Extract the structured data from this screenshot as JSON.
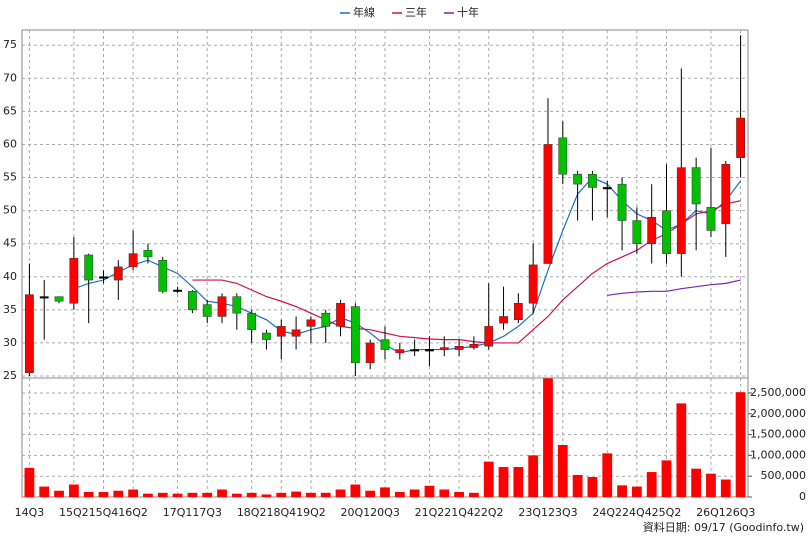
{
  "chart_data": {
    "type": "candlestick",
    "legend": "top",
    "source": "資料日期: 09/17 (Goodinfo.tw)",
    "categories": [
      "14Q3",
      null,
      null,
      "15Q2",
      null,
      "15Q4",
      null,
      "16Q2",
      null,
      null,
      "17Q1",
      null,
      "17Q3",
      null,
      null,
      "18Q2",
      null,
      "18Q4",
      null,
      "19Q2",
      null,
      null,
      "20Q1",
      null,
      "20Q3",
      null,
      null,
      "21Q2",
      null,
      "21Q4",
      null,
      "22Q2",
      null,
      null,
      "23Q1",
      null,
      "23Q3",
      null,
      null,
      "24Q2",
      null,
      "24Q4",
      null,
      "25Q2",
      null,
      null,
      "26Q1",
      null,
      "26Q3"
    ],
    "open": [
      25.5,
      37,
      37,
      36,
      43.3,
      40,
      39.5,
      41.5,
      44,
      42.5,
      38,
      37.8,
      35.8,
      34,
      37,
      34.5,
      31.5,
      31,
      31,
      32.5,
      34.5,
      32.5,
      35.5,
      27,
      30.5,
      28.5,
      29,
      29,
      29,
      29,
      29.3,
      29.5,
      33,
      33.5,
      36,
      42,
      61,
      55.5,
      55.5,
      53.5,
      54,
      48.5,
      45,
      50,
      43.5,
      56.5,
      50.5,
      48,
      58
    ],
    "high": [
      42,
      39.5,
      37,
      46,
      43.5,
      41,
      42.5,
      47,
      45,
      43,
      38.5,
      38,
      36.5,
      37.5,
      37.5,
      35,
      32,
      33.5,
      34,
      34,
      35,
      36.5,
      36,
      30.5,
      32.5,
      30,
      30.5,
      31,
      31,
      30.5,
      31,
      39,
      38.5,
      37.5,
      45,
      67,
      63.5,
      56,
      56,
      54.5,
      55,
      50.5,
      54,
      57,
      71.5,
      58,
      59.5,
      57.5,
      76.5
    ],
    "low": [
      25,
      30.5,
      36,
      35,
      33,
      39,
      36.5,
      41,
      42,
      37.5,
      37.5,
      34.5,
      33,
      33,
      32,
      30,
      29,
      27.5,
      29,
      30,
      30,
      31,
      25,
      26,
      27.5,
      27.5,
      28,
      26.5,
      28,
      28,
      29,
      29,
      32,
      33,
      34.5,
      42,
      54,
      48.5,
      48.5,
      49,
      44,
      43.5,
      42,
      42,
      40,
      44,
      46,
      43,
      55
    ],
    "close": [
      37.3,
      37,
      36.3,
      42.8,
      39.5,
      40,
      41.5,
      43.5,
      43,
      37.8,
      38,
      35,
      34,
      37,
      34.5,
      32,
      30.5,
      32.5,
      32,
      33.5,
      32.5,
      36,
      27,
      30,
      29,
      29,
      29,
      29,
      29.3,
      29.5,
      29.8,
      32.5,
      34,
      36,
      41.8,
      60,
      55.5,
      54,
      53.5,
      53.5,
      48.5,
      45,
      49,
      43.5,
      56.5,
      51,
      47,
      57,
      64
    ],
    "up_color": "#ff0000",
    "down_color": "#00c000",
    "flat_color": "#000000",
    "volume": [
      700000,
      250000,
      150000,
      300000,
      120000,
      120000,
      150000,
      180000,
      80000,
      100000,
      80000,
      100000,
      100000,
      180000,
      80000,
      100000,
      60000,
      100000,
      130000,
      100000,
      100000,
      180000,
      300000,
      150000,
      230000,
      120000,
      180000,
      270000,
      180000,
      120000,
      100000,
      850000,
      720000,
      720000,
      1000000,
      2850000,
      1250000,
      530000,
      480000,
      1050000,
      280000,
      250000,
      600000,
      880000,
      2250000,
      680000,
      560000,
      420000,
      2520000
    ],
    "volume_color": "#ff0000",
    "series": [
      {
        "name": "年線",
        "color": "#1f6fbf",
        "values": [
          null,
          null,
          null,
          38.2,
          39,
          39.5,
          40.7,
          41.8,
          42.5,
          41.5,
          40.5,
          38.5,
          36.3,
          36,
          35.5,
          34.5,
          33.5,
          31.8,
          31.3,
          32,
          32.5,
          33.8,
          33,
          31.5,
          29.7,
          28.5,
          29,
          29,
          29,
          29.2,
          29.5,
          30,
          31,
          32.5,
          34.5,
          41,
          47,
          52.5,
          55,
          54,
          51.5,
          49.5,
          48.5,
          47,
          48,
          50,
          49.5,
          51.5,
          54.5
        ]
      },
      {
        "name": "三年",
        "color": "#cc1155",
        "values": [
          null,
          null,
          null,
          null,
          null,
          null,
          null,
          null,
          null,
          null,
          null,
          39.5,
          39.5,
          39.5,
          39,
          38,
          37,
          36.3,
          35.5,
          34.5,
          33.5,
          32.5,
          32.2,
          32,
          31.5,
          31,
          30.8,
          30.6,
          30.5,
          30.5,
          30.2,
          30,
          30,
          30,
          32,
          34,
          36.5,
          38.5,
          40.5,
          42,
          43,
          44,
          45.5,
          46.5,
          48,
          49.5,
          50,
          51,
          51.5
        ]
      },
      {
        "name": "十年",
        "color": "#7a22aa",
        "values": [
          null,
          null,
          null,
          null,
          null,
          null,
          null,
          null,
          null,
          null,
          null,
          null,
          null,
          null,
          null,
          null,
          null,
          null,
          null,
          null,
          null,
          null,
          null,
          null,
          null,
          null,
          null,
          null,
          null,
          null,
          null,
          null,
          null,
          null,
          null,
          null,
          null,
          null,
          null,
          37.2,
          37.5,
          37.7,
          37.8,
          37.8,
          38.2,
          38.5,
          38.8,
          39,
          39.5
        ]
      }
    ],
    "ylim": [
      24.7,
      77.3
    ],
    "yticks": [
      25,
      30,
      35,
      40,
      45,
      50,
      55,
      60,
      65,
      70,
      75
    ],
    "y2lim": [
      0,
      2860000
    ],
    "y2ticks": [
      0,
      {
        "value": 500000,
        "label": "500,000"
      },
      {
        "value": 1000000,
        "label": "1,000,000"
      },
      {
        "value": 1500000,
        "label": "1,500,000"
      },
      {
        "value": 2000000,
        "label": "2,000,000"
      },
      {
        "value": 2500000,
        "label": "2,500,000"
      }
    ],
    "grid": true
  }
}
